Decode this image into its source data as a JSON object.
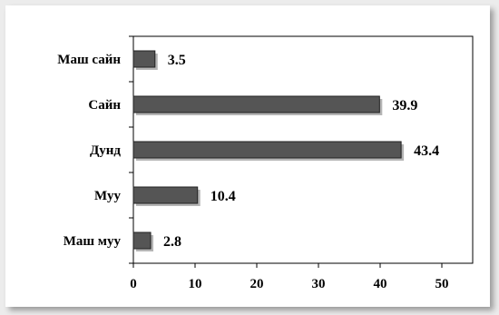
{
  "chart_data": {
    "type": "bar",
    "orientation": "horizontal",
    "categories": [
      "Маш сайн",
      "Сайн",
      "Дунд",
      "Муу",
      "Маш муу"
    ],
    "values": [
      3.5,
      39.9,
      43.4,
      10.4,
      2.8
    ],
    "data_labels": [
      "3.5",
      "39.9",
      "43.4",
      "10.4",
      "2.8"
    ],
    "xlim": [
      0,
      55
    ],
    "xticks": [
      0,
      10,
      20,
      30,
      40,
      50
    ],
    "xtick_labels": [
      "0",
      "10",
      "20",
      "30",
      "40",
      "50"
    ],
    "title": "",
    "xlabel": "",
    "ylabel": "",
    "grid": false,
    "legend": "none",
    "bar_color": "#555555",
    "background": "#ffffff"
  }
}
